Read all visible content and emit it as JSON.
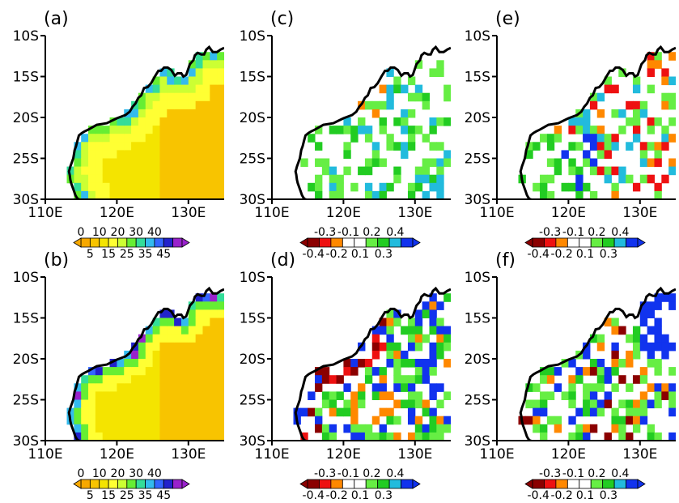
{
  "chart_data": [
    {
      "type": "heatmap",
      "panel_label": "(a)",
      "field": "mean",
      "x_axis": {
        "range": [
          "110E",
          "135E"
        ],
        "ticks": [
          "110E",
          "120E",
          "130E"
        ]
      },
      "y_axis": {
        "range": [
          "10S",
          "30S"
        ],
        "ticks": [
          "10S",
          "15S",
          "20S",
          "25S",
          "30S"
        ]
      },
      "colorbar": {
        "top_labels": [
          "0",
          "10",
          "20",
          "30",
          "40"
        ],
        "bottom_labels": [
          "5",
          "15",
          "25",
          "35",
          "45"
        ],
        "colors": [
          "#f7a800",
          "#f8c400",
          "#f4e400",
          "#ffff33",
          "#ccff33",
          "#66ee33",
          "#33dd99",
          "#33bbee",
          "#3366ff",
          "#2222cc",
          "#9922cc"
        ]
      }
    },
    {
      "type": "heatmap",
      "panel_label": "(b)",
      "field": "mean",
      "x_axis": {
        "range": [
          "110E",
          "135E"
        ],
        "ticks": [
          "110E",
          "120E",
          "130E"
        ]
      },
      "y_axis": {
        "range": [
          "10S",
          "30S"
        ],
        "ticks": [
          "10S",
          "15S",
          "20S",
          "25S",
          "30S"
        ]
      },
      "colorbar": {
        "top_labels": [
          "0",
          "10",
          "20",
          "30",
          "40"
        ],
        "bottom_labels": [
          "5",
          "15",
          "25",
          "35",
          "45"
        ],
        "colors": [
          "#f7a800",
          "#f8c400",
          "#f4e400",
          "#ffff33",
          "#ccff33",
          "#66ee33",
          "#33dd99",
          "#33bbee",
          "#3366ff",
          "#2222cc",
          "#9922cc"
        ]
      }
    },
    {
      "type": "heatmap",
      "panel_label": "(c)",
      "field": "diff",
      "x_axis": {
        "range": [
          "110E",
          "135E"
        ],
        "ticks": [
          "110E",
          "120E",
          "130E"
        ]
      },
      "y_axis": {
        "range": [
          "10S",
          "30S"
        ],
        "ticks": [
          "10S",
          "15S",
          "20S",
          "25S",
          "30S"
        ]
      },
      "colorbar": {
        "top_labels": [
          "-0.3",
          "-0.1",
          "0.2",
          "0.4"
        ],
        "bottom_labels": [
          "-0.4",
          "-0.2",
          "0.1",
          "0.3"
        ],
        "colors": [
          "#8b0000",
          "#ee1111",
          "#ff8800",
          "#ffffff",
          "#ffffff",
          "#66ee44",
          "#22cc22",
          "#22bbdd",
          "#1133ee"
        ]
      }
    },
    {
      "type": "heatmap",
      "panel_label": "(d)",
      "field": "diff",
      "x_axis": {
        "range": [
          "110E",
          "135E"
        ],
        "ticks": [
          "110E",
          "120E",
          "130E"
        ]
      },
      "y_axis": {
        "range": [
          "10S",
          "30S"
        ],
        "ticks": [
          "10S",
          "15S",
          "20S",
          "25S",
          "30S"
        ]
      },
      "colorbar": {
        "top_labels": [
          "-0.3",
          "-0.1",
          "0.2",
          "0.4"
        ],
        "bottom_labels": [
          "-0.4",
          "-0.2",
          "0.1",
          "0.3"
        ],
        "colors": [
          "#8b0000",
          "#ee1111",
          "#ff8800",
          "#ffffff",
          "#ffffff",
          "#66ee44",
          "#22cc22",
          "#22bbdd",
          "#1133ee"
        ]
      }
    },
    {
      "type": "heatmap",
      "panel_label": "(e)",
      "field": "diff",
      "x_axis": {
        "range": [
          "110E",
          "135E"
        ],
        "ticks": [
          "110E",
          "120E",
          "130E"
        ]
      },
      "y_axis": {
        "range": [
          "10S",
          "30S"
        ],
        "ticks": [
          "10S",
          "15S",
          "20S",
          "25S",
          "30S"
        ]
      },
      "colorbar": {
        "top_labels": [
          "-0.3",
          "-0.1",
          "0.2",
          "0.4"
        ],
        "bottom_labels": [
          "-0.4",
          "-0.2",
          "0.1",
          "0.3"
        ],
        "colors": [
          "#8b0000",
          "#ee1111",
          "#ff8800",
          "#ffffff",
          "#ffffff",
          "#66ee44",
          "#22cc22",
          "#22bbdd",
          "#1133ee"
        ]
      }
    },
    {
      "type": "heatmap",
      "panel_label": "(f)",
      "field": "diff",
      "x_axis": {
        "range": [
          "110E",
          "135E"
        ],
        "ticks": [
          "110E",
          "120E",
          "130E"
        ]
      },
      "y_axis": {
        "range": [
          "10S",
          "30S"
        ],
        "ticks": [
          "10S",
          "15S",
          "20S",
          "25S",
          "30S"
        ]
      },
      "colorbar": {
        "top_labels": [
          "-0.3",
          "-0.1",
          "0.2",
          "0.4"
        ],
        "bottom_labels": [
          "-0.4",
          "-0.2",
          "0.1",
          "0.3"
        ],
        "colors": [
          "#8b0000",
          "#ee1111",
          "#ff8800",
          "#ffffff",
          "#ffffff",
          "#66ee44",
          "#22cc22",
          "#22bbdd",
          "#1133ee"
        ]
      }
    }
  ],
  "coastline": {
    "lon": [
      135,
      134.5,
      134.0,
      133.4,
      132.9,
      132.5,
      132.2,
      131.8,
      131.3,
      130.9,
      130.7,
      130.2,
      129.7,
      129.3,
      129.0,
      128.5,
      128.1,
      127.6,
      127.1,
      126.6,
      126.2,
      125.8,
      125.3,
      124.8,
      124.3,
      123.8,
      123.4,
      123.0,
      122.6,
      122.2,
      121.8,
      121.2,
      120.6,
      120.0,
      119.3,
      118.6,
      117.9,
      117.2,
      116.6,
      116.0,
      115.5,
      115.1,
      114.7,
      114.5,
      114.3,
      114.1,
      114.0,
      113.9,
      113.7,
      113.5,
      113.4,
      113.3,
      113.4,
      113.5,
      113.6,
      113.8,
      114.0,
      114.2,
      114.4,
      114.6,
      114.8
    ],
    "lat": [
      -11.5,
      -11.7,
      -12.0,
      -12.0,
      -11.4,
      -11.7,
      -12.3,
      -12.3,
      -12.1,
      -12.4,
      -13.0,
      -13.5,
      -14.8,
      -15.0,
      -14.6,
      -14.6,
      -14.9,
      -14.2,
      -13.9,
      -13.9,
      -14.3,
      -14.3,
      -15.0,
      -15.8,
      -16.3,
      -16.4,
      -17.3,
      -17.6,
      -18.3,
      -18.7,
      -19.3,
      -19.7,
      -19.9,
      -20.1,
      -20.4,
      -20.7,
      -20.8,
      -20.9,
      -21.2,
      -21.5,
      -21.7,
      -21.9,
      -22.2,
      -22.8,
      -23.5,
      -24.0,
      -24.5,
      -25.0,
      -25.5,
      -26.0,
      -26.3,
      -26.6,
      -27.0,
      -27.6,
      -28.0,
      -28.5,
      -29.0,
      -29.5,
      -29.8,
      -30.0,
      -30.0
    ]
  }
}
